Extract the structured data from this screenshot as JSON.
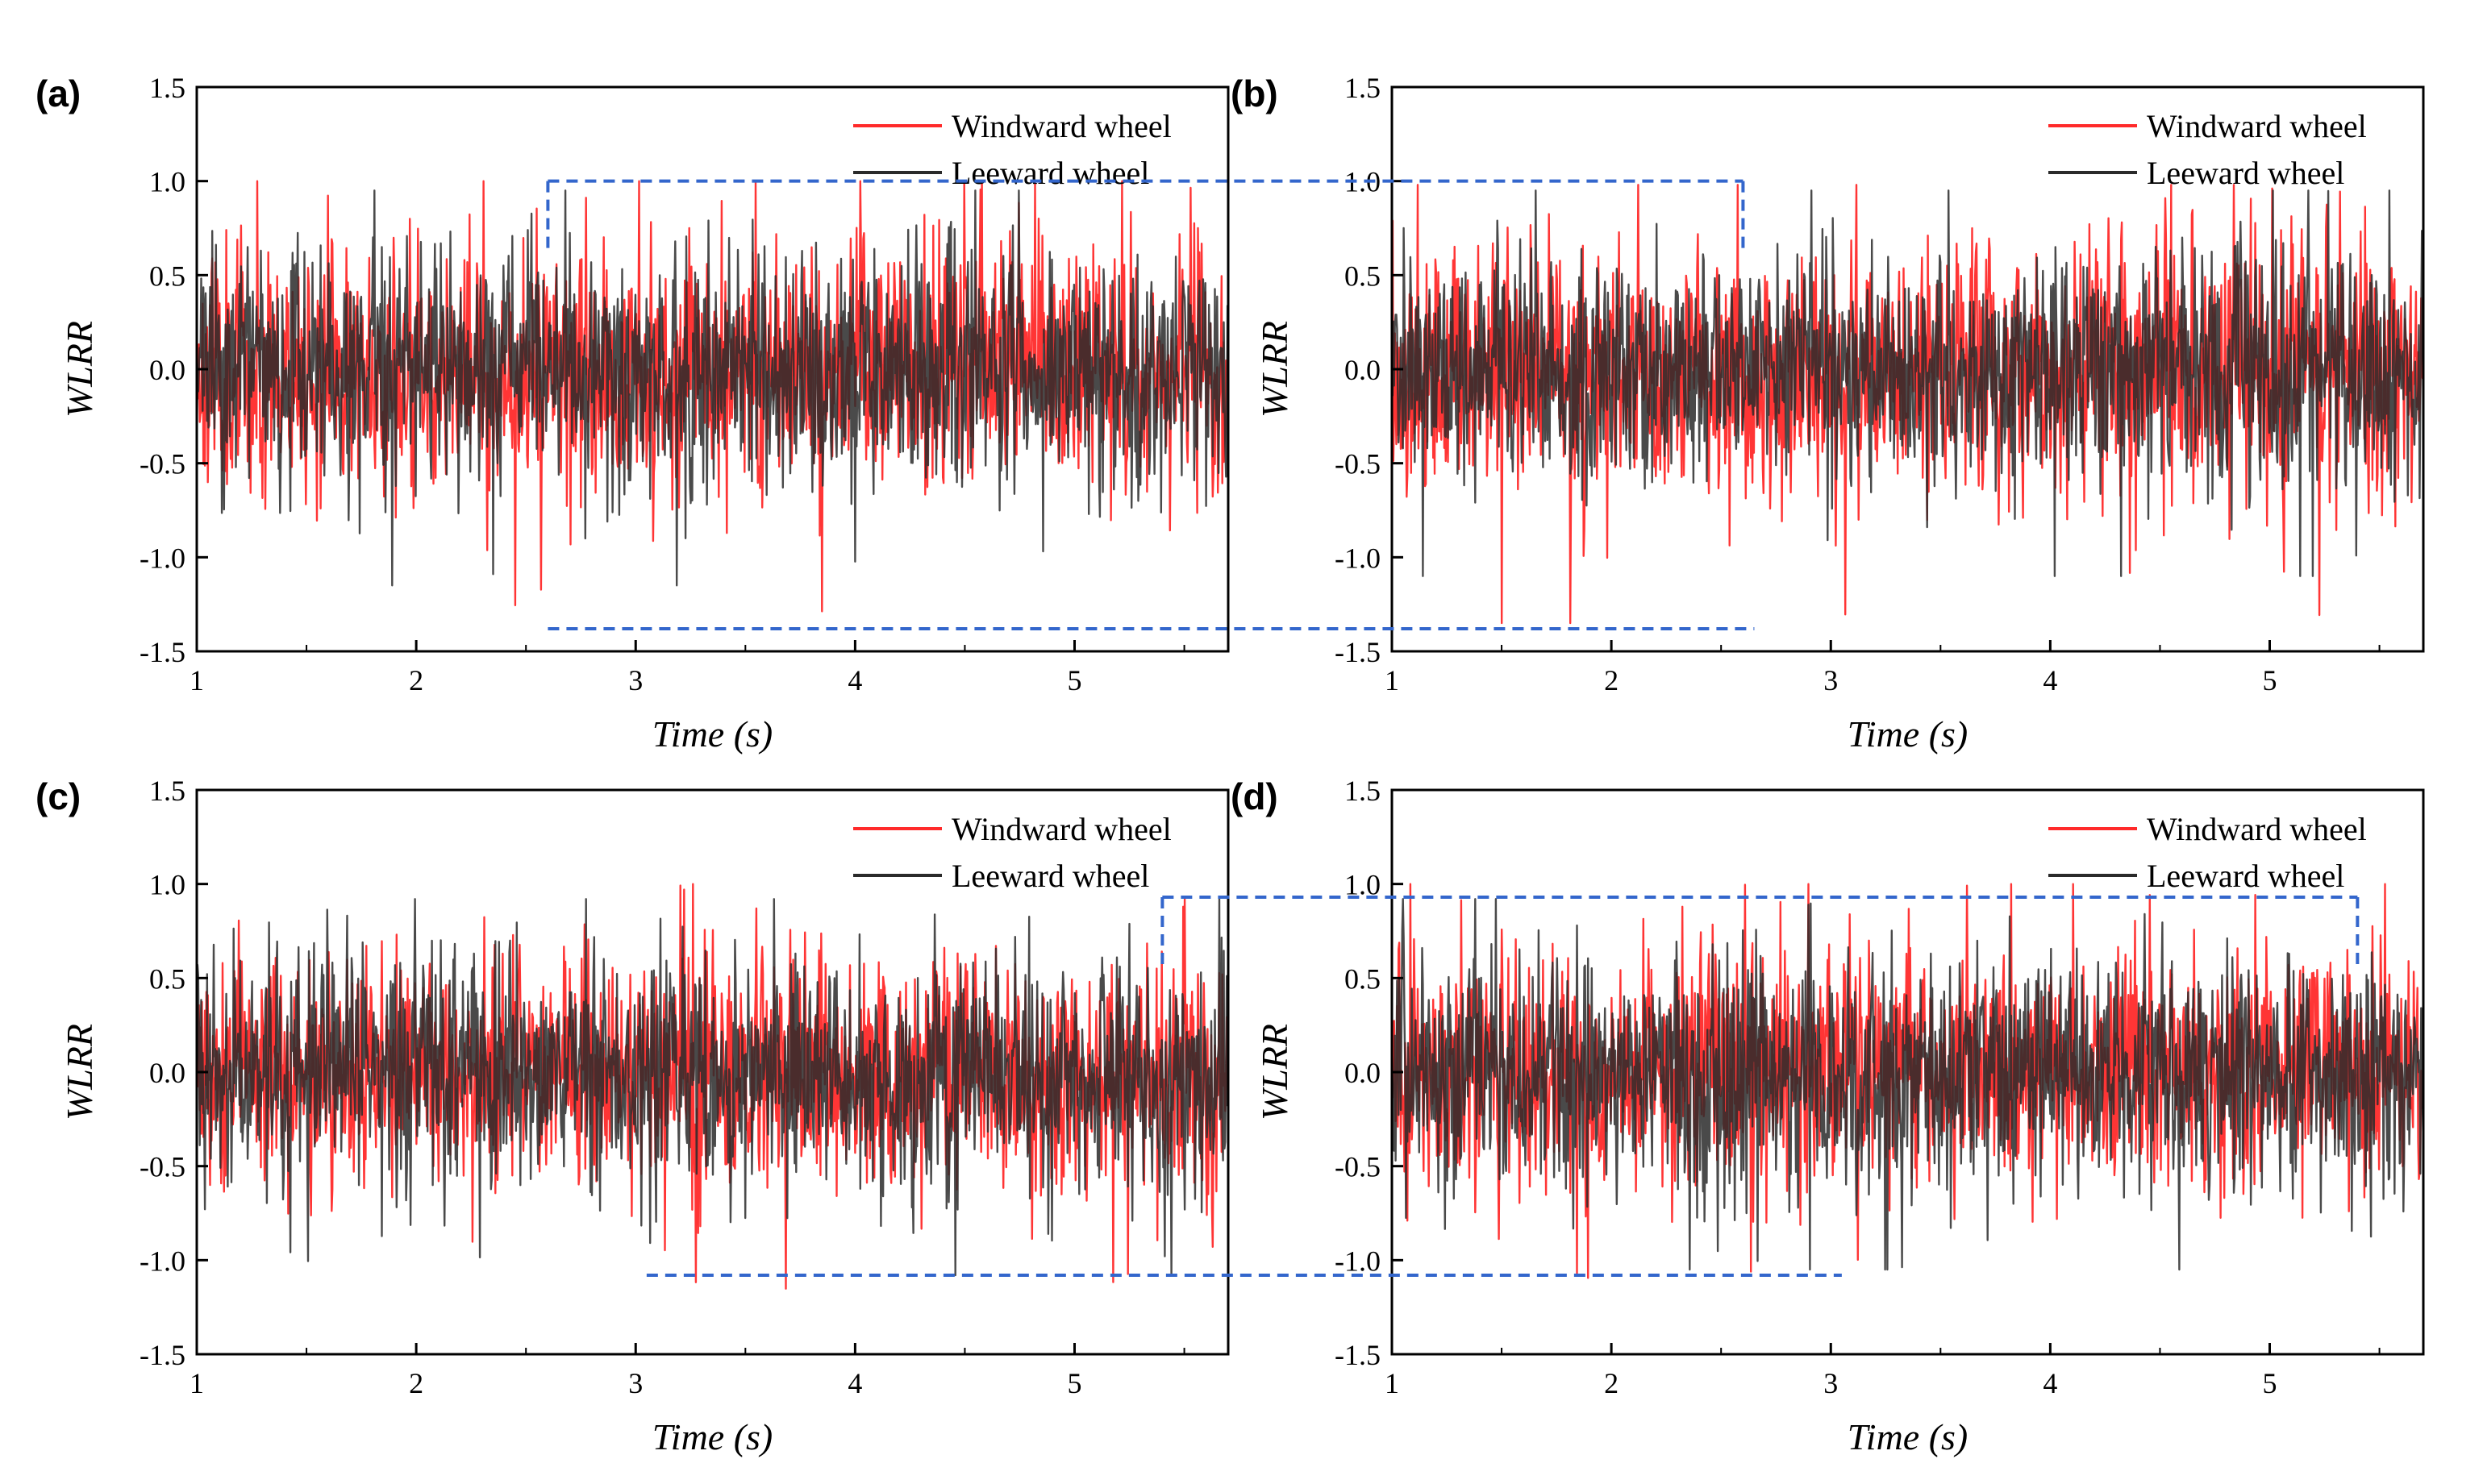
{
  "figure": {
    "windward_color": "#ff2a2a",
    "leeward_color": "#2a2a2a",
    "guide_color": "#3366cc"
  },
  "chart_data": [
    {
      "panel": "(a)",
      "type": "line",
      "xlabel": "Time (s)",
      "ylabel": "WLRR",
      "xlim": [
        1,
        5.7
      ],
      "ylim": [
        -1.5,
        1.5
      ],
      "xticks": [
        1,
        2,
        3,
        4,
        5
      ],
      "yticks": [
        1.5,
        1.0,
        0.5,
        0.0,
        -0.5,
        -1.0,
        -1.5
      ],
      "ytick_labels": [
        "1.5",
        "1.0",
        "0.5",
        "0.0",
        "-0.5",
        "-1.0",
        "-1.5"
      ],
      "series": [
        {
          "name": "Windward wheel",
          "color": "#ff2a2a",
          "amplitude": 0.32,
          "extremes": {
            "max": 1.0,
            "min": -1.38
          },
          "seed": 11
        },
        {
          "name": "Leeward wheel",
          "color": "#2a2a2a",
          "amplitude": 0.3,
          "extremes": {
            "max": 0.95,
            "min": -1.15
          },
          "seed": 23
        }
      ],
      "guide": {
        "x_from": 2.6,
        "y_top": 1.0,
        "y_bottom": -1.38
      }
    },
    {
      "panel": "(b)",
      "type": "line",
      "xlabel": "Time (s)",
      "ylabel": "WLRR",
      "xlim": [
        1,
        5.7
      ],
      "ylim": [
        -1.5,
        1.5
      ],
      "xticks": [
        1,
        2,
        3,
        4,
        5
      ],
      "yticks": [
        1.5,
        1.0,
        0.5,
        0.0,
        -0.5,
        -1.0,
        -1.5
      ],
      "ytick_labels": [
        "1.5",
        "1.0",
        "0.5",
        "0.0",
        "-0.5",
        "-1.0",
        "-1.5"
      ],
      "series": [
        {
          "name": "Windward wheel",
          "color": "#ff2a2a",
          "amplitude": 0.32,
          "extremes": {
            "max": 0.98,
            "min": -1.35
          },
          "seed": 37
        },
        {
          "name": "Leeward wheel",
          "color": "#2a2a2a",
          "amplitude": 0.3,
          "extremes": {
            "max": 0.95,
            "min": -1.1
          },
          "seed": 41
        }
      ],
      "guide": {
        "x_to": 2.6,
        "y_top": 1.0,
        "y_bottom": -1.38
      }
    },
    {
      "panel": "(c)",
      "type": "line",
      "xlabel": "Time (s)",
      "ylabel": "WLRR",
      "xlim": [
        1,
        5.7
      ],
      "ylim": [
        -1.5,
        1.5
      ],
      "xticks": [
        1,
        2,
        3,
        4,
        5
      ],
      "yticks": [
        1.5,
        1.0,
        0.5,
        0.0,
        -0.5,
        -1.0,
        -1.5
      ],
      "ytick_labels": [
        "1.5",
        "1.0",
        "0.5",
        "0.0",
        "-0.5",
        "-1.0",
        "-1.5"
      ],
      "series": [
        {
          "name": "Windward wheel",
          "color": "#ff2a2a",
          "amplitude": 0.3,
          "extremes": {
            "max": 1.0,
            "min": -1.28
          },
          "seed": 53
        },
        {
          "name": "Leeward wheel",
          "color": "#2a2a2a",
          "amplitude": 0.3,
          "extremes": {
            "max": 0.92,
            "min": -1.08
          },
          "seed": 67
        }
      ],
      "guide": {
        "x_from": 3.05,
        "x_top_from": 5.4,
        "y_top": 0.93,
        "y_bottom": -1.08
      }
    },
    {
      "panel": "(d)",
      "type": "line",
      "xlabel": "Time (s)",
      "ylabel": "WLRR",
      "xlim": [
        1,
        5.7
      ],
      "ylim": [
        -1.5,
        1.5
      ],
      "xticks": [
        1,
        2,
        3,
        4,
        5
      ],
      "yticks": [
        1.5,
        1.0,
        0.5,
        0.0,
        -0.5,
        -1.0,
        -1.5
      ],
      "ytick_labels": [
        "1.5",
        "1.0",
        "0.5",
        "0.0",
        "-0.5",
        "-1.0",
        "-1.5"
      ],
      "series": [
        {
          "name": "Windward wheel",
          "color": "#ff2a2a",
          "amplitude": 0.3,
          "extremes": {
            "max": 1.0,
            "min": -1.28
          },
          "seed": 71
        },
        {
          "name": "Leeward wheel",
          "color": "#2a2a2a",
          "amplitude": 0.3,
          "extremes": {
            "max": 0.92,
            "min": -1.05
          },
          "seed": 83
        }
      ],
      "guide": {
        "x_to": 3.05,
        "x_top_to": 5.4,
        "y_top": 0.93,
        "y_bottom": -1.08
      }
    }
  ]
}
